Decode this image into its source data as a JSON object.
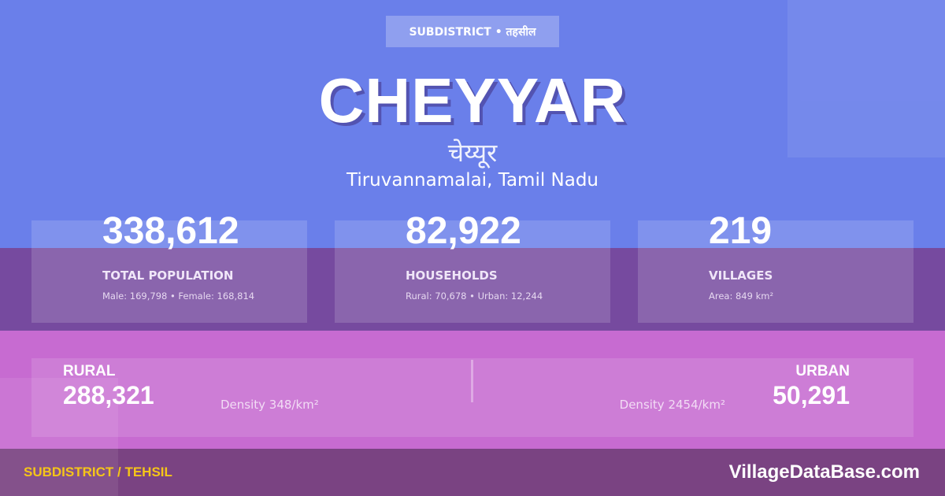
{
  "header": {
    "badge": "SUBDISTRICT • तहसील",
    "title": "CHEYYAR",
    "title_hindi": "चेय्यूर",
    "location": "Tiruvannamalai, Tamil Nadu"
  },
  "stats": [
    {
      "value": "338,612",
      "label": "TOTAL POPULATION",
      "sub": "Male: 169,798 • Female: 168,814"
    },
    {
      "value": "82,922",
      "label": "HOUSEHOLDS",
      "sub": "Rural: 70,678 • Urban: 12,244"
    },
    {
      "value": "219",
      "label": "VILLAGES",
      "sub": "Area: 849 km²"
    }
  ],
  "rural": {
    "label": "RURAL",
    "value": "288,321",
    "density": "Density 348/km²"
  },
  "urban": {
    "label": "URBAN",
    "value": "50,291",
    "density": "Density 2454/km²"
  },
  "footer": {
    "type": "SUBDISTRICT / TEHSIL",
    "site": "VillageDataBase.com"
  },
  "colors": {
    "top": "#6a7fea",
    "band": "#764a9f",
    "pink": "#c76bd1",
    "footer": "#7a4382",
    "accent": "#f5c518"
  }
}
